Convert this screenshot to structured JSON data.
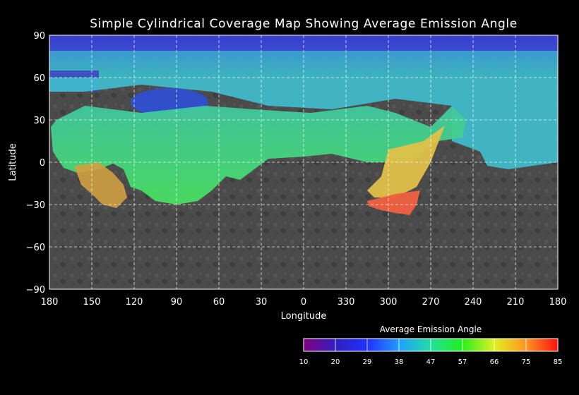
{
  "title": "Simple Cylindrical Coverage Map Showing Average Emission Angle",
  "xlabel": "Longitude",
  "ylabel": "Latitude",
  "x_ticks": [
    "180",
    "150",
    "120",
    "90",
    "60",
    "30",
    "0",
    "330",
    "300",
    "270",
    "240",
    "210",
    "180"
  ],
  "y_ticks": [
    "90",
    "60",
    "30",
    "0",
    "−30",
    "−60",
    "−90"
  ],
  "grid": "dashed",
  "colorbar": {
    "title": "Average Emission Angle",
    "ticks": [
      "10",
      "20",
      "29",
      "38",
      "47",
      "57",
      "66",
      "75",
      "85"
    ],
    "range": [
      10,
      85
    ]
  },
  "colors": {
    "background": "#000000",
    "basemap_gray": "#4a4a4a",
    "low_emission": "#3030c0",
    "mid_emission": "#40e070",
    "high_emission": "#ff5030"
  }
}
